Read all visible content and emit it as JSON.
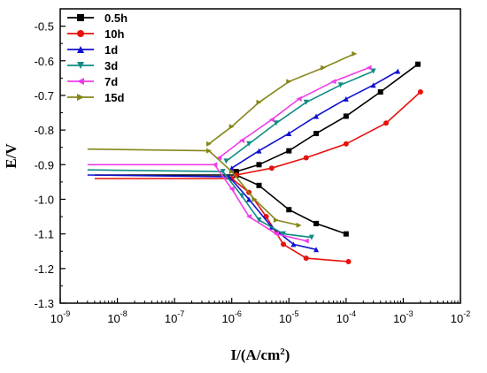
{
  "chart_data": {
    "type": "line",
    "xscale": "log",
    "xlim": [
      1e-09,
      0.01
    ],
    "ylim": [
      -1.3,
      -0.45
    ],
    "xlabel": "I/(A/cm²)",
    "xlabel_main": "I/(A/cm",
    "xlabel_sup": "2",
    "xlabel_tail": ")",
    "ylabel": "E/V",
    "xticks": [
      {
        "value": 1e-09,
        "base": "10",
        "exp": "-9"
      },
      {
        "value": 1e-08,
        "base": "10",
        "exp": "-8"
      },
      {
        "value": 1e-07,
        "base": "10",
        "exp": "-7"
      },
      {
        "value": 1e-06,
        "base": "10",
        "exp": "-6"
      },
      {
        "value": 1e-05,
        "base": "10",
        "exp": "-5"
      },
      {
        "value": 0.0001,
        "base": "10",
        "exp": "-4"
      },
      {
        "value": 0.001,
        "base": "10",
        "exp": "-3"
      },
      {
        "value": 0.01,
        "base": "10",
        "exp": "-2"
      }
    ],
    "yticks": [
      {
        "value": -0.5,
        "label": "-0.5"
      },
      {
        "value": -0.6,
        "label": "-0.6"
      },
      {
        "value": -0.7,
        "label": "-0.7"
      },
      {
        "value": -0.8,
        "label": "-0.8"
      },
      {
        "value": -0.9,
        "label": "-0.9"
      },
      {
        "value": -1.0,
        "label": "-1.0"
      },
      {
        "value": -1.1,
        "label": "-1.1"
      },
      {
        "value": -1.2,
        "label": "-1.2"
      },
      {
        "value": -1.3,
        "label": "-1.3"
      }
    ],
    "grid": false,
    "legend_position": "top-left",
    "series": [
      {
        "name": "0.5h",
        "color": "#000000",
        "marker": "square",
        "points": [
          [
            1.2e-06,
            -0.93
          ],
          [
            3e-06,
            -0.96
          ],
          [
            1e-05,
            -1.03
          ],
          [
            3e-05,
            -1.07
          ],
          [
            0.0001,
            -1.1
          ]
        ],
        "anodic": [
          [
            1.2e-06,
            -0.92
          ],
          [
            3e-06,
            -0.9
          ],
          [
            1e-05,
            -0.86
          ],
          [
            3e-05,
            -0.81
          ],
          [
            0.0001,
            -0.76
          ],
          [
            0.0004,
            -0.69
          ],
          [
            0.0018,
            -0.61
          ]
        ],
        "flat": [
          [
            4e-09,
            -0.93
          ],
          [
            1.2e-06,
            -0.93
          ]
        ]
      },
      {
        "name": "10h",
        "color": "#e8120c",
        "marker": "circle",
        "points": [
          [
            1e-06,
            -0.94
          ],
          [
            2e-06,
            -0.98
          ],
          [
            4e-06,
            -1.05
          ],
          [
            8e-06,
            -1.13
          ],
          [
            2e-05,
            -1.17
          ],
          [
            0.00011,
            -1.18
          ]
        ],
        "anodic": [
          [
            1.2e-06,
            -0.93
          ],
          [
            5e-06,
            -0.91
          ],
          [
            2e-05,
            -0.88
          ],
          [
            0.0001,
            -0.84
          ],
          [
            0.0005,
            -0.78
          ],
          [
            0.002,
            -0.69
          ]
        ],
        "flat": [
          [
            4e-09,
            -0.94
          ],
          [
            1e-06,
            -0.94
          ]
        ]
      },
      {
        "name": "1d",
        "color": "#1010d0",
        "marker": "triangle-up",
        "points": [
          [
            9e-07,
            -0.935
          ],
          [
            2e-06,
            -1.0
          ],
          [
            5e-06,
            -1.08
          ],
          [
            1.2e-05,
            -1.13
          ],
          [
            3e-05,
            -1.145
          ]
        ],
        "anodic": [
          [
            1e-06,
            -0.91
          ],
          [
            3e-06,
            -0.86
          ],
          [
            1e-05,
            -0.81
          ],
          [
            3e-05,
            -0.76
          ],
          [
            0.0001,
            -0.71
          ],
          [
            0.0003,
            -0.67
          ],
          [
            0.0008,
            -0.63
          ]
        ],
        "flat": [
          [
            3e-09,
            -0.93
          ],
          [
            9e-07,
            -0.935
          ]
        ]
      },
      {
        "name": "3d",
        "color": "#0e8c82",
        "marker": "triangle-down",
        "points": [
          [
            7e-07,
            -0.92
          ],
          [
            1.5e-06,
            -0.99
          ],
          [
            3e-06,
            -1.06
          ],
          [
            8e-06,
            -1.1
          ],
          [
            2.5e-05,
            -1.11
          ]
        ],
        "anodic": [
          [
            8e-07,
            -0.89
          ],
          [
            2e-06,
            -0.84
          ],
          [
            6e-06,
            -0.78
          ],
          [
            2e-05,
            -0.72
          ],
          [
            8e-05,
            -0.67
          ],
          [
            0.0003,
            -0.63
          ]
        ],
        "flat": [
          [
            3e-09,
            -0.915
          ],
          [
            7e-07,
            -0.92
          ]
        ]
      },
      {
        "name": "7d",
        "color": "#f03ce8",
        "marker": "triangle-left",
        "points": [
          [
            5e-07,
            -0.9
          ],
          [
            1e-06,
            -0.97
          ],
          [
            2e-06,
            -1.05
          ],
          [
            6e-06,
            -1.1
          ],
          [
            2e-05,
            -1.12
          ]
        ],
        "anodic": [
          [
            6e-07,
            -0.88
          ],
          [
            1.5e-06,
            -0.83
          ],
          [
            5e-06,
            -0.77
          ],
          [
            1.5e-05,
            -0.71
          ],
          [
            6e-05,
            -0.66
          ],
          [
            0.00025,
            -0.62
          ]
        ],
        "flat": [
          [
            3e-09,
            -0.9
          ],
          [
            5e-07,
            -0.9
          ]
        ]
      },
      {
        "name": "15d",
        "color": "#86861a",
        "marker": "triangle-right",
        "points": [
          [
            4e-07,
            -0.86
          ],
          [
            1e-06,
            -0.92
          ],
          [
            2.5e-06,
            -1.0
          ],
          [
            6e-06,
            -1.06
          ],
          [
            1.5e-05,
            -1.075
          ]
        ],
        "anodic": [
          [
            4e-07,
            -0.84
          ],
          [
            1e-06,
            -0.79
          ],
          [
            3e-06,
            -0.72
          ],
          [
            1e-05,
            -0.66
          ],
          [
            4e-05,
            -0.62
          ],
          [
            0.00014,
            -0.58
          ]
        ],
        "flat": [
          [
            3e-09,
            -0.855
          ],
          [
            4e-07,
            -0.86
          ]
        ]
      }
    ]
  }
}
